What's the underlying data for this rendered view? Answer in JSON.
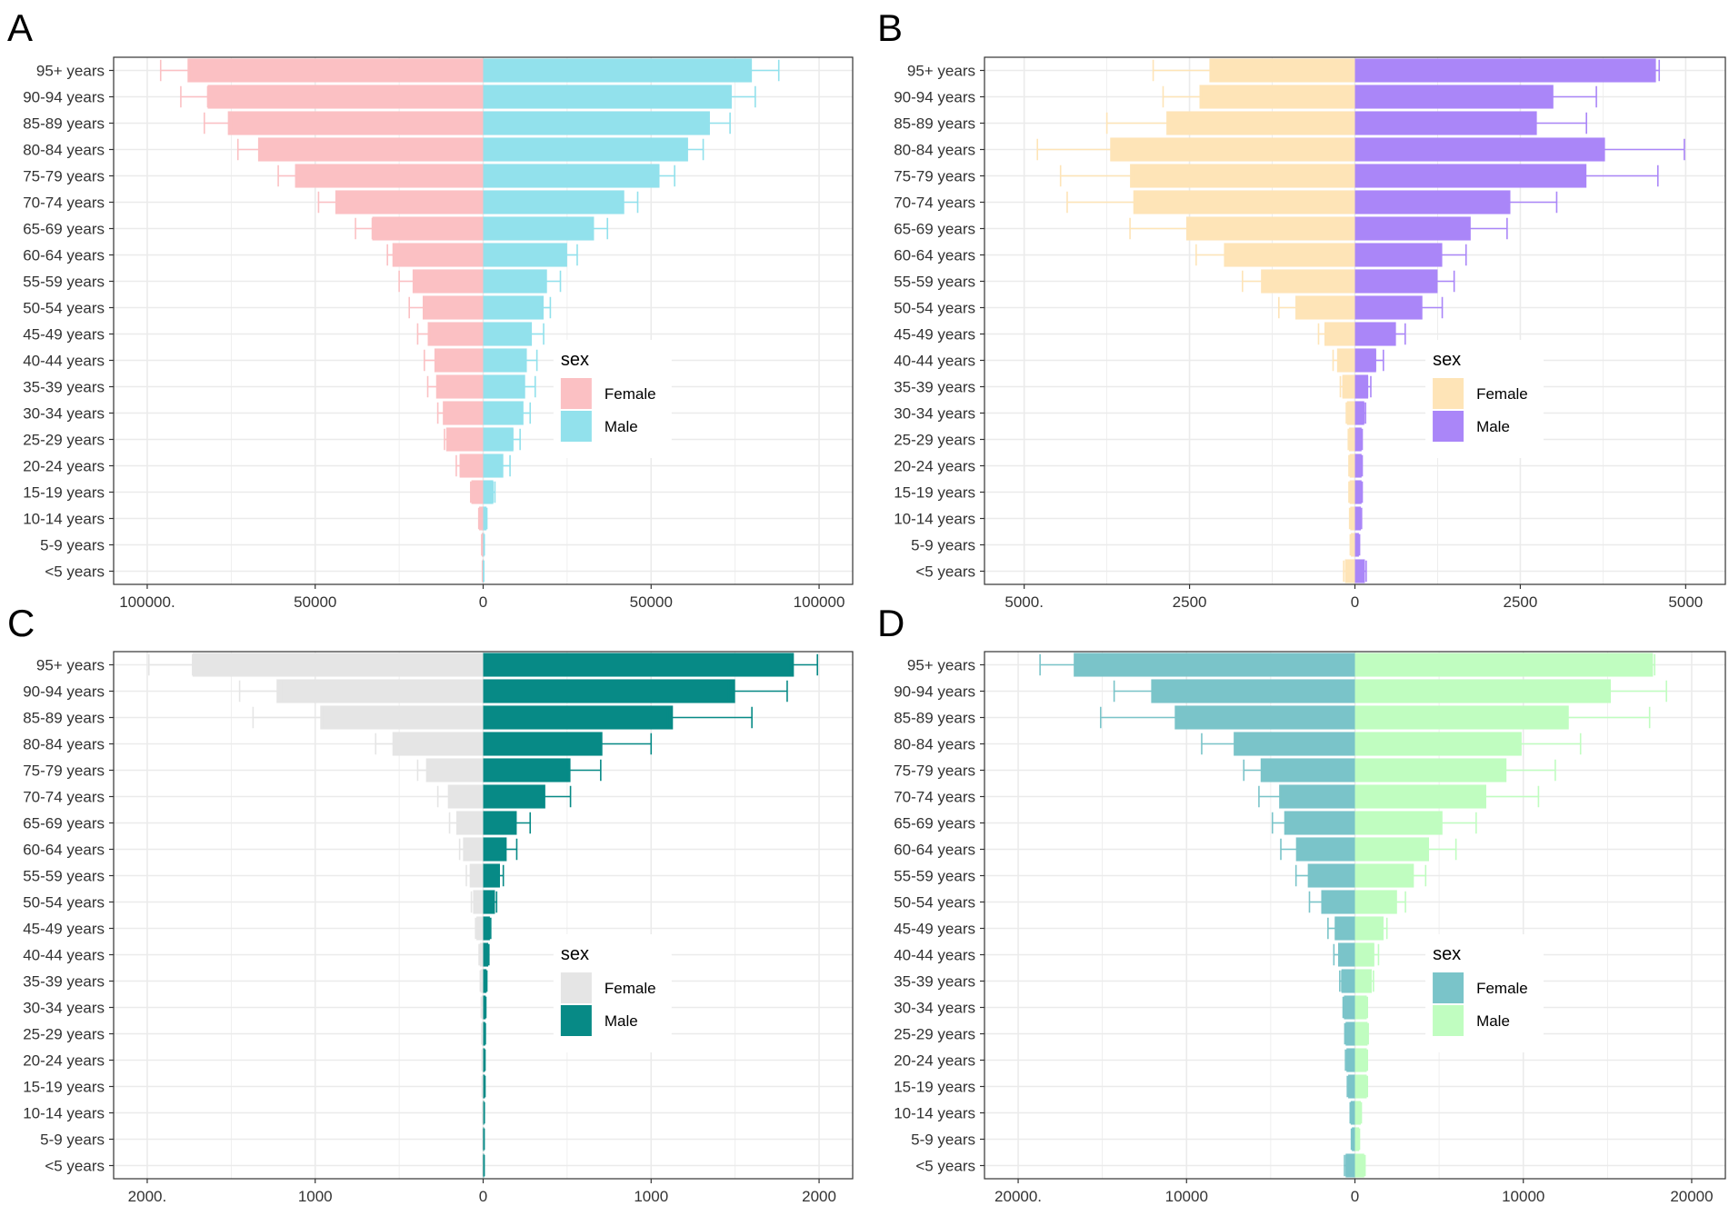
{
  "chart_data": [
    {
      "panel_label": "A",
      "type": "bar",
      "orientation": "horizontal-diverging",
      "categories": [
        "95+ years",
        "90-94 years",
        "85-89 years",
        "80-84 years",
        "75-79 years",
        "70-74 years",
        "65-69 years",
        "60-64 years",
        "55-59 years",
        "50-54 years",
        "45-49 years",
        "40-44 years",
        "35-39 years",
        "30-34 years",
        "25-29 years",
        "20-24 years",
        "15-19 years",
        "10-14 years",
        "5-9 years",
        "<5 years"
      ],
      "xlim": [
        -110000,
        110000
      ],
      "x_ticks": [
        -100000,
        -50000,
        0,
        50000,
        100000
      ],
      "x_tick_labels": [
        "100000.",
        "50000",
        "0",
        "50000",
        "100000"
      ],
      "legend_title": "sex",
      "series": [
        {
          "name": "Female",
          "color": "#FBC0C3",
          "values": [
            88000,
            82000,
            76000,
            67000,
            56000,
            44000,
            33000,
            27000,
            21000,
            18000,
            16500,
            14500,
            14000,
            12000,
            11000,
            7000,
            3500,
            1200,
            400,
            200
          ],
          "err": [
            [
              87000,
              96000
            ],
            [
              82000,
              90000
            ],
            [
              75000,
              83000
            ],
            [
              66000,
              73000
            ],
            [
              55000,
              61000
            ],
            [
              43500,
              49000
            ],
            [
              33000,
              38000
            ],
            [
              26500,
              28500
            ],
            [
              20000,
              25000
            ],
            [
              17500,
              22000
            ],
            [
              16000,
              19500
            ],
            [
              13500,
              17500
            ],
            [
              13500,
              16500
            ],
            [
              11500,
              13500
            ],
            [
              10500,
              11500
            ],
            [
              6800,
              8000
            ],
            [
              3300,
              3700
            ],
            [
              1100,
              1300
            ],
            [
              380,
              420
            ],
            [
              190,
              210
            ]
          ]
        },
        {
          "name": "Male",
          "color": "#92E1EC",
          "values": [
            80000,
            74000,
            67500,
            61000,
            52500,
            42000,
            33000,
            25000,
            19000,
            18000,
            14500,
            13000,
            12500,
            12000,
            9000,
            6000,
            3000,
            1000,
            300,
            150
          ],
          "err": [
            [
              79000,
              88000
            ],
            [
              73500,
              81000
            ],
            [
              67000,
              73500
            ],
            [
              60000,
              65500
            ],
            [
              52000,
              57000
            ],
            [
              41500,
              46000
            ],
            [
              32500,
              37000
            ],
            [
              24500,
              28000
            ],
            [
              18500,
              23000
            ],
            [
              17500,
              20000
            ],
            [
              14000,
              18000
            ],
            [
              12500,
              16000
            ],
            [
              12000,
              15500
            ],
            [
              11500,
              14000
            ],
            [
              8800,
              11000
            ],
            [
              5500,
              8000
            ],
            [
              2900,
              3500
            ],
            [
              950,
              1100
            ],
            [
              280,
              330
            ],
            [
              140,
              160
            ]
          ]
        }
      ]
    },
    {
      "panel_label": "B",
      "type": "bar",
      "orientation": "horizontal-diverging",
      "categories": [
        "95+ years",
        "90-94 years",
        "85-89 years",
        "80-84 years",
        "75-79 years",
        "70-74 years",
        "65-69 years",
        "60-64 years",
        "55-59 years",
        "50-54 years",
        "45-49 years",
        "40-44 years",
        "35-39 years",
        "30-34 years",
        "25-29 years",
        "20-24 years",
        "15-19 years",
        "10-14 years",
        "5-9 years",
        "<5 years"
      ],
      "xlim": [
        -5600,
        5600
      ],
      "x_ticks": [
        -5000,
        -2500,
        0,
        2500,
        5000
      ],
      "x_tick_labels": [
        "5000.",
        "2500",
        "0",
        "2500",
        "5000"
      ],
      "legend_title": "sex",
      "series": [
        {
          "name": "Female",
          "color": "#FEE4B7",
          "values": [
            2200,
            2350,
            2850,
            3700,
            3400,
            3350,
            2550,
            1980,
            1420,
            900,
            460,
            270,
            190,
            120,
            90,
            80,
            80,
            70,
            60,
            150
          ],
          "err": [
            [
              2100,
              3050
            ],
            [
              2300,
              2900
            ],
            [
              2800,
              3750
            ],
            [
              3650,
              4800
            ],
            [
              3350,
              4450
            ],
            [
              3300,
              4350
            ],
            [
              2500,
              3400
            ],
            [
              1950,
              2400
            ],
            [
              1400,
              1700
            ],
            [
              850,
              1150
            ],
            [
              450,
              550
            ],
            [
              250,
              330
            ],
            [
              180,
              220
            ],
            [
              115,
              130
            ],
            [
              85,
              100
            ],
            [
              75,
              90
            ],
            [
              75,
              90
            ],
            [
              65,
              80
            ],
            [
              55,
              70
            ],
            [
              140,
              170
            ]
          ]
        },
        {
          "name": "Male",
          "color": "#AA86F8",
          "values": [
            4550,
            3000,
            2750,
            3780,
            3500,
            2350,
            1750,
            1320,
            1250,
            1020,
            620,
            320,
            200,
            140,
            100,
            100,
            100,
            90,
            60,
            150
          ],
          "err": [
            [
              4500,
              4600
            ],
            [
              2950,
              3650
            ],
            [
              2700,
              3500
            ],
            [
              3720,
              4980
            ],
            [
              3450,
              4580
            ],
            [
              2300,
              3050
            ],
            [
              1720,
              2300
            ],
            [
              1300,
              1680
            ],
            [
              1230,
              1500
            ],
            [
              1000,
              1320
            ],
            [
              600,
              760
            ],
            [
              310,
              430
            ],
            [
              190,
              240
            ],
            [
              135,
              160
            ],
            [
              95,
              110
            ],
            [
              95,
              110
            ],
            [
              95,
              110
            ],
            [
              85,
              100
            ],
            [
              55,
              70
            ],
            [
              140,
              170
            ]
          ]
        }
      ]
    },
    {
      "panel_label": "C",
      "type": "bar",
      "orientation": "horizontal-diverging",
      "categories": [
        "95+ years",
        "90-94 years",
        "85-89 years",
        "80-84 years",
        "75-79 years",
        "70-74 years",
        "65-69 years",
        "60-64 years",
        "55-59 years",
        "50-54 years",
        "45-49 years",
        "40-44 years",
        "35-39 years",
        "30-34 years",
        "25-29 years",
        "20-24 years",
        "15-19 years",
        "10-14 years",
        "5-9 years",
        "<5 years"
      ],
      "xlim": [
        -2200,
        2200
      ],
      "x_ticks": [
        -2000,
        -1000,
        0,
        1000,
        2000
      ],
      "x_tick_labels": [
        "2000.",
        "1000",
        "0",
        "1000",
        "2000"
      ],
      "legend_title": "sex",
      "series": [
        {
          "name": "Female",
          "color": "#E5E5E5",
          "values": [
            1730,
            1230,
            970,
            540,
            340,
            210,
            160,
            120,
            80,
            60,
            40,
            20,
            15,
            10,
            8,
            6,
            5,
            3,
            2,
            2
          ],
          "err": [
            [
              1730,
              1990
            ],
            [
              1200,
              1450
            ],
            [
              950,
              1370
            ],
            [
              520,
              640
            ],
            [
              330,
              390
            ],
            [
              200,
              270
            ],
            [
              150,
              200
            ],
            [
              110,
              140
            ],
            [
              75,
              100
            ],
            [
              55,
              70
            ],
            [
              35,
              45
            ],
            [
              18,
              24
            ],
            [
              13,
              17
            ],
            [
              9,
              11
            ],
            [
              7,
              9
            ],
            [
              5,
              7
            ],
            [
              4,
              6
            ],
            [
              2,
              4
            ],
            [
              1,
              3
            ],
            [
              1,
              3
            ]
          ]
        },
        {
          "name": "Male",
          "color": "#078A86",
          "values": [
            1850,
            1500,
            1130,
            710,
            520,
            370,
            200,
            140,
            100,
            70,
            40,
            30,
            20,
            15,
            12,
            10,
            10,
            6,
            5,
            5
          ],
          "err": [
            [
              1830,
              1990
            ],
            [
              1460,
              1810
            ],
            [
              1100,
              1600
            ],
            [
              700,
              1000
            ],
            [
              500,
              700
            ],
            [
              360,
              520
            ],
            [
              190,
              280
            ],
            [
              130,
              200
            ],
            [
              95,
              120
            ],
            [
              65,
              80
            ],
            [
              38,
              45
            ],
            [
              28,
              34
            ],
            [
              18,
              22
            ],
            [
              14,
              16
            ],
            [
              11,
              13
            ],
            [
              9,
              11
            ],
            [
              9,
              11
            ],
            [
              5,
              7
            ],
            [
              4,
              6
            ],
            [
              4,
              6
            ]
          ]
        }
      ]
    },
    {
      "panel_label": "D",
      "type": "bar",
      "orientation": "horizontal-diverging",
      "categories": [
        "95+ years",
        "90-94 years",
        "85-89 years",
        "80-84 years",
        "75-79 years",
        "70-74 years",
        "65-69 years",
        "60-64 years",
        "55-59 years",
        "50-54 years",
        "45-49 years",
        "40-44 years",
        "35-39 years",
        "30-34 years",
        "25-29 years",
        "20-24 years",
        "15-19 years",
        "10-14 years",
        "5-9 years",
        "<5 years"
      ],
      "xlim": [
        -22000,
        22000
      ],
      "x_ticks": [
        -20000,
        -10000,
        0,
        10000,
        20000
      ],
      "x_tick_labels": [
        "20000.",
        "10000",
        "0",
        "10000",
        "20000"
      ],
      "legend_title": "sex",
      "series": [
        {
          "name": "Female",
          "color": "#7AC4C9",
          "values": [
            16700,
            12100,
            10700,
            7200,
            5600,
            4500,
            4200,
            3500,
            2800,
            2000,
            1200,
            1000,
            800,
            650,
            550,
            500,
            400,
            250,
            180,
            550
          ],
          "err": [
            [
              16600,
              18700
            ],
            [
              12000,
              14300
            ],
            [
              10600,
              15100
            ],
            [
              7100,
              9100
            ],
            [
              5500,
              6600
            ],
            [
              4400,
              5700
            ],
            [
              4100,
              4900
            ],
            [
              3400,
              4400
            ],
            [
              2700,
              3500
            ],
            [
              1950,
              2700
            ],
            [
              1150,
              1600
            ],
            [
              950,
              1250
            ],
            [
              780,
              900
            ],
            [
              630,
              700
            ],
            [
              530,
              600
            ],
            [
              480,
              560
            ],
            [
              380,
              450
            ],
            [
              240,
              280
            ],
            [
              170,
              210
            ],
            [
              520,
              620
            ]
          ]
        },
        {
          "name": "Male",
          "color": "#C0FDC0",
          "values": [
            17700,
            15200,
            12700,
            9900,
            9000,
            7800,
            5200,
            4400,
            3500,
            2500,
            1700,
            1150,
            1000,
            700,
            750,
            700,
            700,
            350,
            250,
            550
          ],
          "err": [
            [
              17600,
              17800
            ],
            [
              15100,
              18500
            ],
            [
              12600,
              17500
            ],
            [
              9800,
              13400
            ],
            [
              8900,
              11900
            ],
            [
              7700,
              10900
            ],
            [
              5100,
              7200
            ],
            [
              4300,
              6000
            ],
            [
              3400,
              4200
            ],
            [
              2400,
              3000
            ],
            [
              1650,
              1900
            ],
            [
              1100,
              1400
            ],
            [
              950,
              1100
            ],
            [
              680,
              740
            ],
            [
              730,
              790
            ],
            [
              680,
              740
            ],
            [
              680,
              740
            ],
            [
              340,
              380
            ],
            [
              240,
              270
            ],
            [
              530,
              600
            ]
          ]
        }
      ]
    }
  ]
}
